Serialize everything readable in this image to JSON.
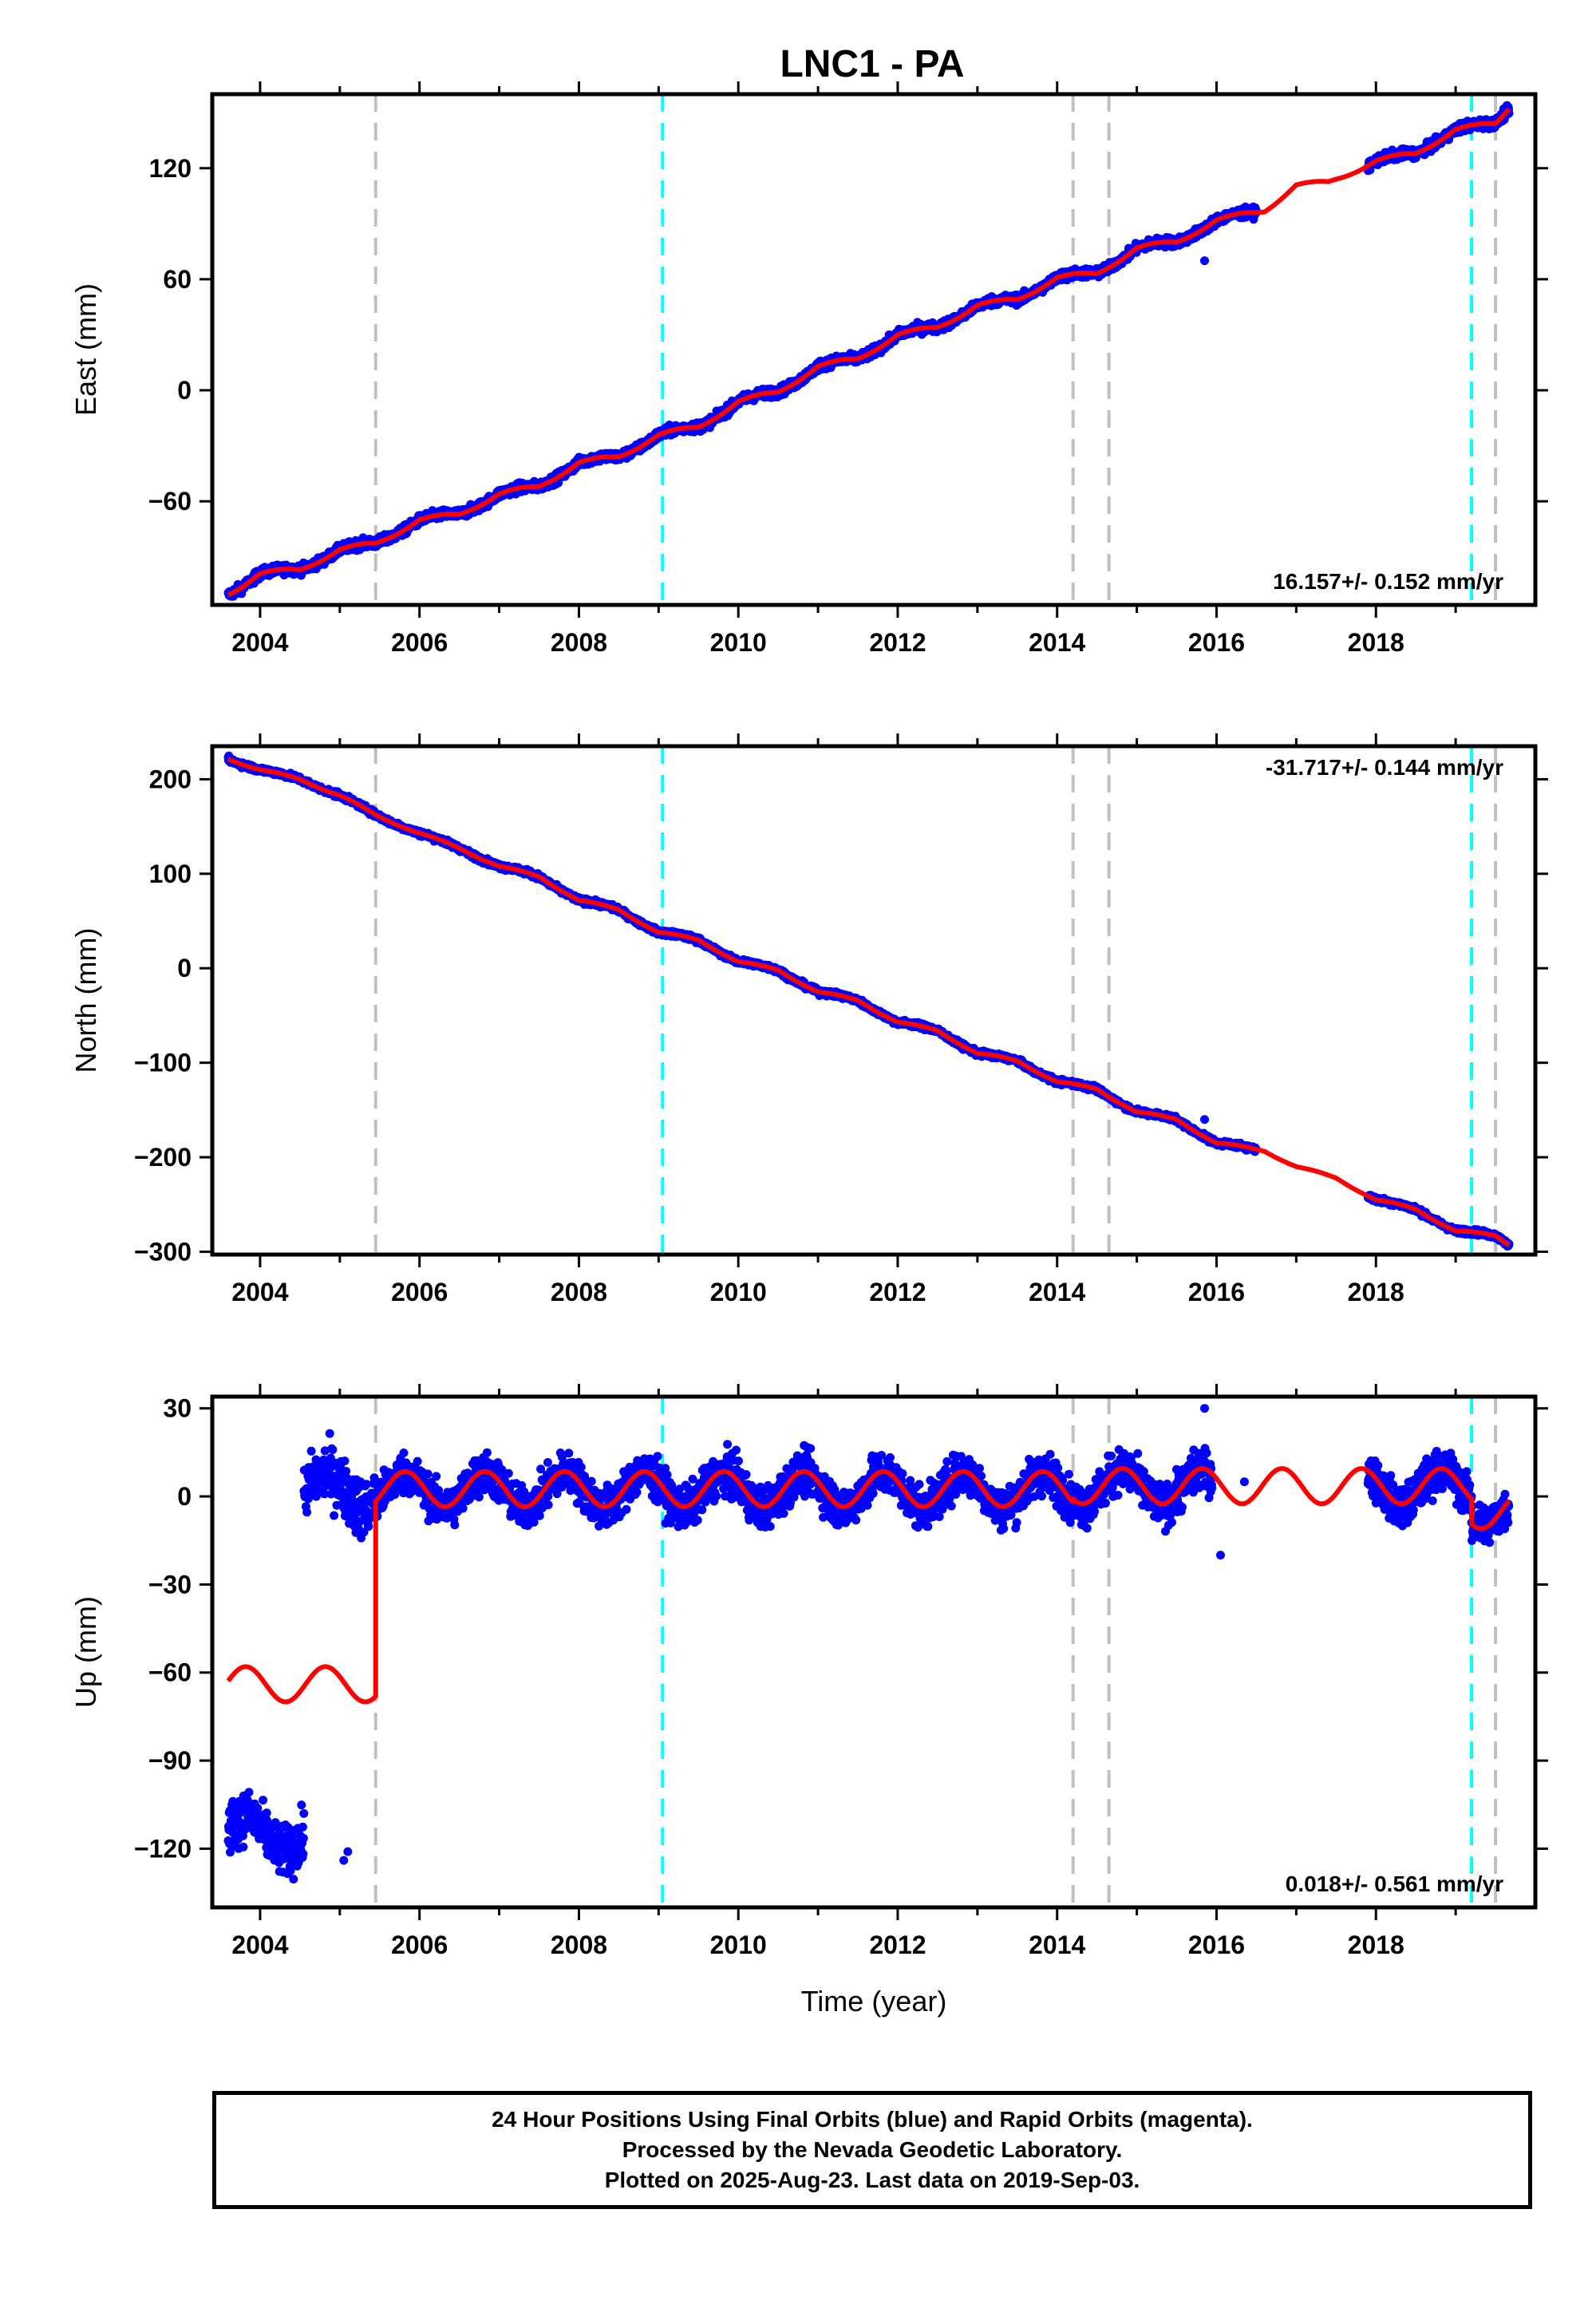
{
  "title": "LNC1 - PA",
  "footer": {
    "line1": "24 Hour Positions Using Final Orbits (blue) and Rapid Orbits (magenta).",
    "line2": "Processed by the Nevada Geodetic Laboratory.",
    "line3": "Plotted on 2025-Aug-23. Last data on 2019-Sep-03."
  },
  "colors": {
    "data_points": "#0000ff",
    "model_fit": "#ff0000",
    "equipment_change_lines": "#c0c0c0",
    "earthquake_lines": "#00ffff",
    "frame": "#000000"
  },
  "chart_data": [
    {
      "type": "scatter",
      "panel": "east",
      "ylabel": "East (mm)",
      "xlabel": "",
      "rate_label": "16.157+/- 0.152 mm/yr",
      "xlim": [
        2003.4,
        2020.0
      ],
      "ylim": [
        -116,
        160
      ],
      "yticks": [
        -60,
        0,
        60,
        120
      ],
      "xticks": [
        2004,
        2006,
        2008,
        2010,
        2012,
        2014,
        2016,
        2018
      ],
      "grey_dashed_lines": [
        2005.45,
        2014.2,
        2014.65,
        2019.5
      ],
      "cyan_dashed_lines": [
        2009.05,
        2019.2
      ],
      "model_fit_keypoints": [
        [
          2003.6,
          -110
        ],
        [
          2004.0,
          -99
        ],
        [
          2004.5,
          -97
        ],
        [
          2005.0,
          -86
        ],
        [
          2005.45,
          -83
        ],
        [
          2006.0,
          -70
        ],
        [
          2006.5,
          -67
        ],
        [
          2007.0,
          -56
        ],
        [
          2007.5,
          -52
        ],
        [
          2008.0,
          -39
        ],
        [
          2008.5,
          -36
        ],
        [
          2009.0,
          -24
        ],
        [
          2009.5,
          -20
        ],
        [
          2010.0,
          -6
        ],
        [
          2010.5,
          -1
        ],
        [
          2011.0,
          13
        ],
        [
          2011.5,
          17
        ],
        [
          2012.0,
          30
        ],
        [
          2012.5,
          34
        ],
        [
          2013.0,
          46
        ],
        [
          2013.5,
          49
        ],
        [
          2014.0,
          61
        ],
        [
          2014.5,
          63
        ],
        [
          2015.0,
          77
        ],
        [
          2015.5,
          80
        ],
        [
          2016.0,
          92
        ],
        [
          2016.6,
          97
        ],
        [
          2017.0,
          111
        ],
        [
          2017.4,
          112
        ],
        [
          2018.0,
          124
        ],
        [
          2018.5,
          128
        ],
        [
          2019.0,
          141
        ],
        [
          2019.5,
          144
        ],
        [
          2019.67,
          153
        ]
      ],
      "scatter_noise_mm": 1.8,
      "outliers": [
        [
          2015.85,
          70
        ]
      ]
    },
    {
      "type": "scatter",
      "panel": "north",
      "ylabel": "North (mm)",
      "xlabel": "",
      "rate_label": "-31.717+/- 0.144 mm/yr",
      "xlim": [
        2003.4,
        2020.0
      ],
      "ylim": [
        -303,
        235
      ],
      "yticks": [
        -300,
        -200,
        -100,
        0,
        100,
        200
      ],
      "xticks": [
        2004,
        2006,
        2008,
        2010,
        2012,
        2014,
        2016,
        2018
      ],
      "grey_dashed_lines": [
        2005.45,
        2014.2,
        2014.65,
        2019.5
      ],
      "cyan_dashed_lines": [
        2009.05,
        2019.2
      ],
      "model_fit_keypoints": [
        [
          2003.6,
          222
        ],
        [
          2004.0,
          210
        ],
        [
          2004.5,
          200
        ],
        [
          2005.0,
          183
        ],
        [
          2005.45,
          162
        ],
        [
          2006.0,
          143
        ],
        [
          2006.5,
          127
        ],
        [
          2007.0,
          108
        ],
        [
          2007.5,
          97
        ],
        [
          2008.0,
          72
        ],
        [
          2008.5,
          62
        ],
        [
          2009.0,
          38
        ],
        [
          2009.5,
          30
        ],
        [
          2010.0,
          7
        ],
        [
          2010.5,
          -2
        ],
        [
          2011.0,
          -25
        ],
        [
          2011.5,
          -34
        ],
        [
          2012.0,
          -57
        ],
        [
          2012.5,
          -66
        ],
        [
          2013.0,
          -90
        ],
        [
          2013.5,
          -98
        ],
        [
          2014.0,
          -120
        ],
        [
          2014.5,
          -128
        ],
        [
          2015.0,
          -152
        ],
        [
          2015.5,
          -160
        ],
        [
          2016.0,
          -185
        ],
        [
          2016.6,
          -193
        ],
        [
          2017.0,
          -210
        ],
        [
          2017.5,
          -222
        ],
        [
          2018.0,
          -245
        ],
        [
          2018.5,
          -255
        ],
        [
          2019.0,
          -278
        ],
        [
          2019.5,
          -283
        ],
        [
          2019.67,
          -292
        ]
      ],
      "scatter_noise_mm": 2.0,
      "outliers": [
        [
          2015.85,
          -160
        ]
      ]
    },
    {
      "type": "scatter",
      "panel": "up",
      "ylabel": "Up (mm)",
      "xlabel": "Time (year)",
      "rate_label": "0.018+/- 0.561 mm/yr",
      "xlim": [
        2003.4,
        2020.0
      ],
      "ylim": [
        -140,
        34
      ],
      "yticks": [
        -120,
        -90,
        -60,
        -30,
        0,
        30
      ],
      "xticks": [
        2004,
        2006,
        2008,
        2010,
        2012,
        2014,
        2016,
        2018
      ],
      "grey_dashed_lines": [
        2005.45,
        2014.2,
        2014.65,
        2019.5
      ],
      "cyan_dashed_lines": [
        2009.05,
        2019.2
      ],
      "segments": [
        {
          "start": 2003.6,
          "end": 2005.45,
          "offset": -64,
          "data_offset": -115,
          "data_ranges": [
            [
              2003.6,
              2004.55
            ]
          ],
          "amplitude": 6,
          "noise_mm": 6
        },
        {
          "start": 2004.55,
          "end": 2005.45,
          "offset": -64,
          "data_offset": 2,
          "data_ranges": [
            [
              2004.55,
              2005.45
            ]
          ],
          "amplitude": 6,
          "noise_mm": 7
        },
        {
          "start": 2005.45,
          "end": 2014.2,
          "offset": 2.5,
          "data_offset": 2,
          "data_ranges": [
            [
              2005.45,
              2014.2
            ]
          ],
          "amplitude": 6,
          "noise_mm": 5
        },
        {
          "start": 2014.2,
          "end": 2014.65,
          "offset": 3.5,
          "data_offset": 3,
          "data_ranges": [
            [
              2014.2,
              2014.65
            ]
          ],
          "amplitude": 6,
          "noise_mm": 5
        },
        {
          "start": 2014.65,
          "end": 2019.2,
          "offset": 3.5,
          "data_offset": 3,
          "data_ranges": [
            [
              2014.65,
              2015.95
            ],
            [
              2017.9,
              2019.2
            ]
          ],
          "amplitude": 6,
          "noise_mm": 5
        },
        {
          "start": 2019.2,
          "end": 2019.67,
          "offset": -5,
          "data_offset": -6,
          "data_ranges": [
            [
              2019.2,
              2019.67
            ]
          ],
          "amplitude": 4,
          "noise_mm": 5
        }
      ],
      "outliers": [
        [
          2005.05,
          -124
        ],
        [
          2005.1,
          -121
        ],
        [
          2016.05,
          -20
        ],
        [
          2016.35,
          5
        ],
        [
          2015.85,
          30
        ]
      ]
    }
  ]
}
